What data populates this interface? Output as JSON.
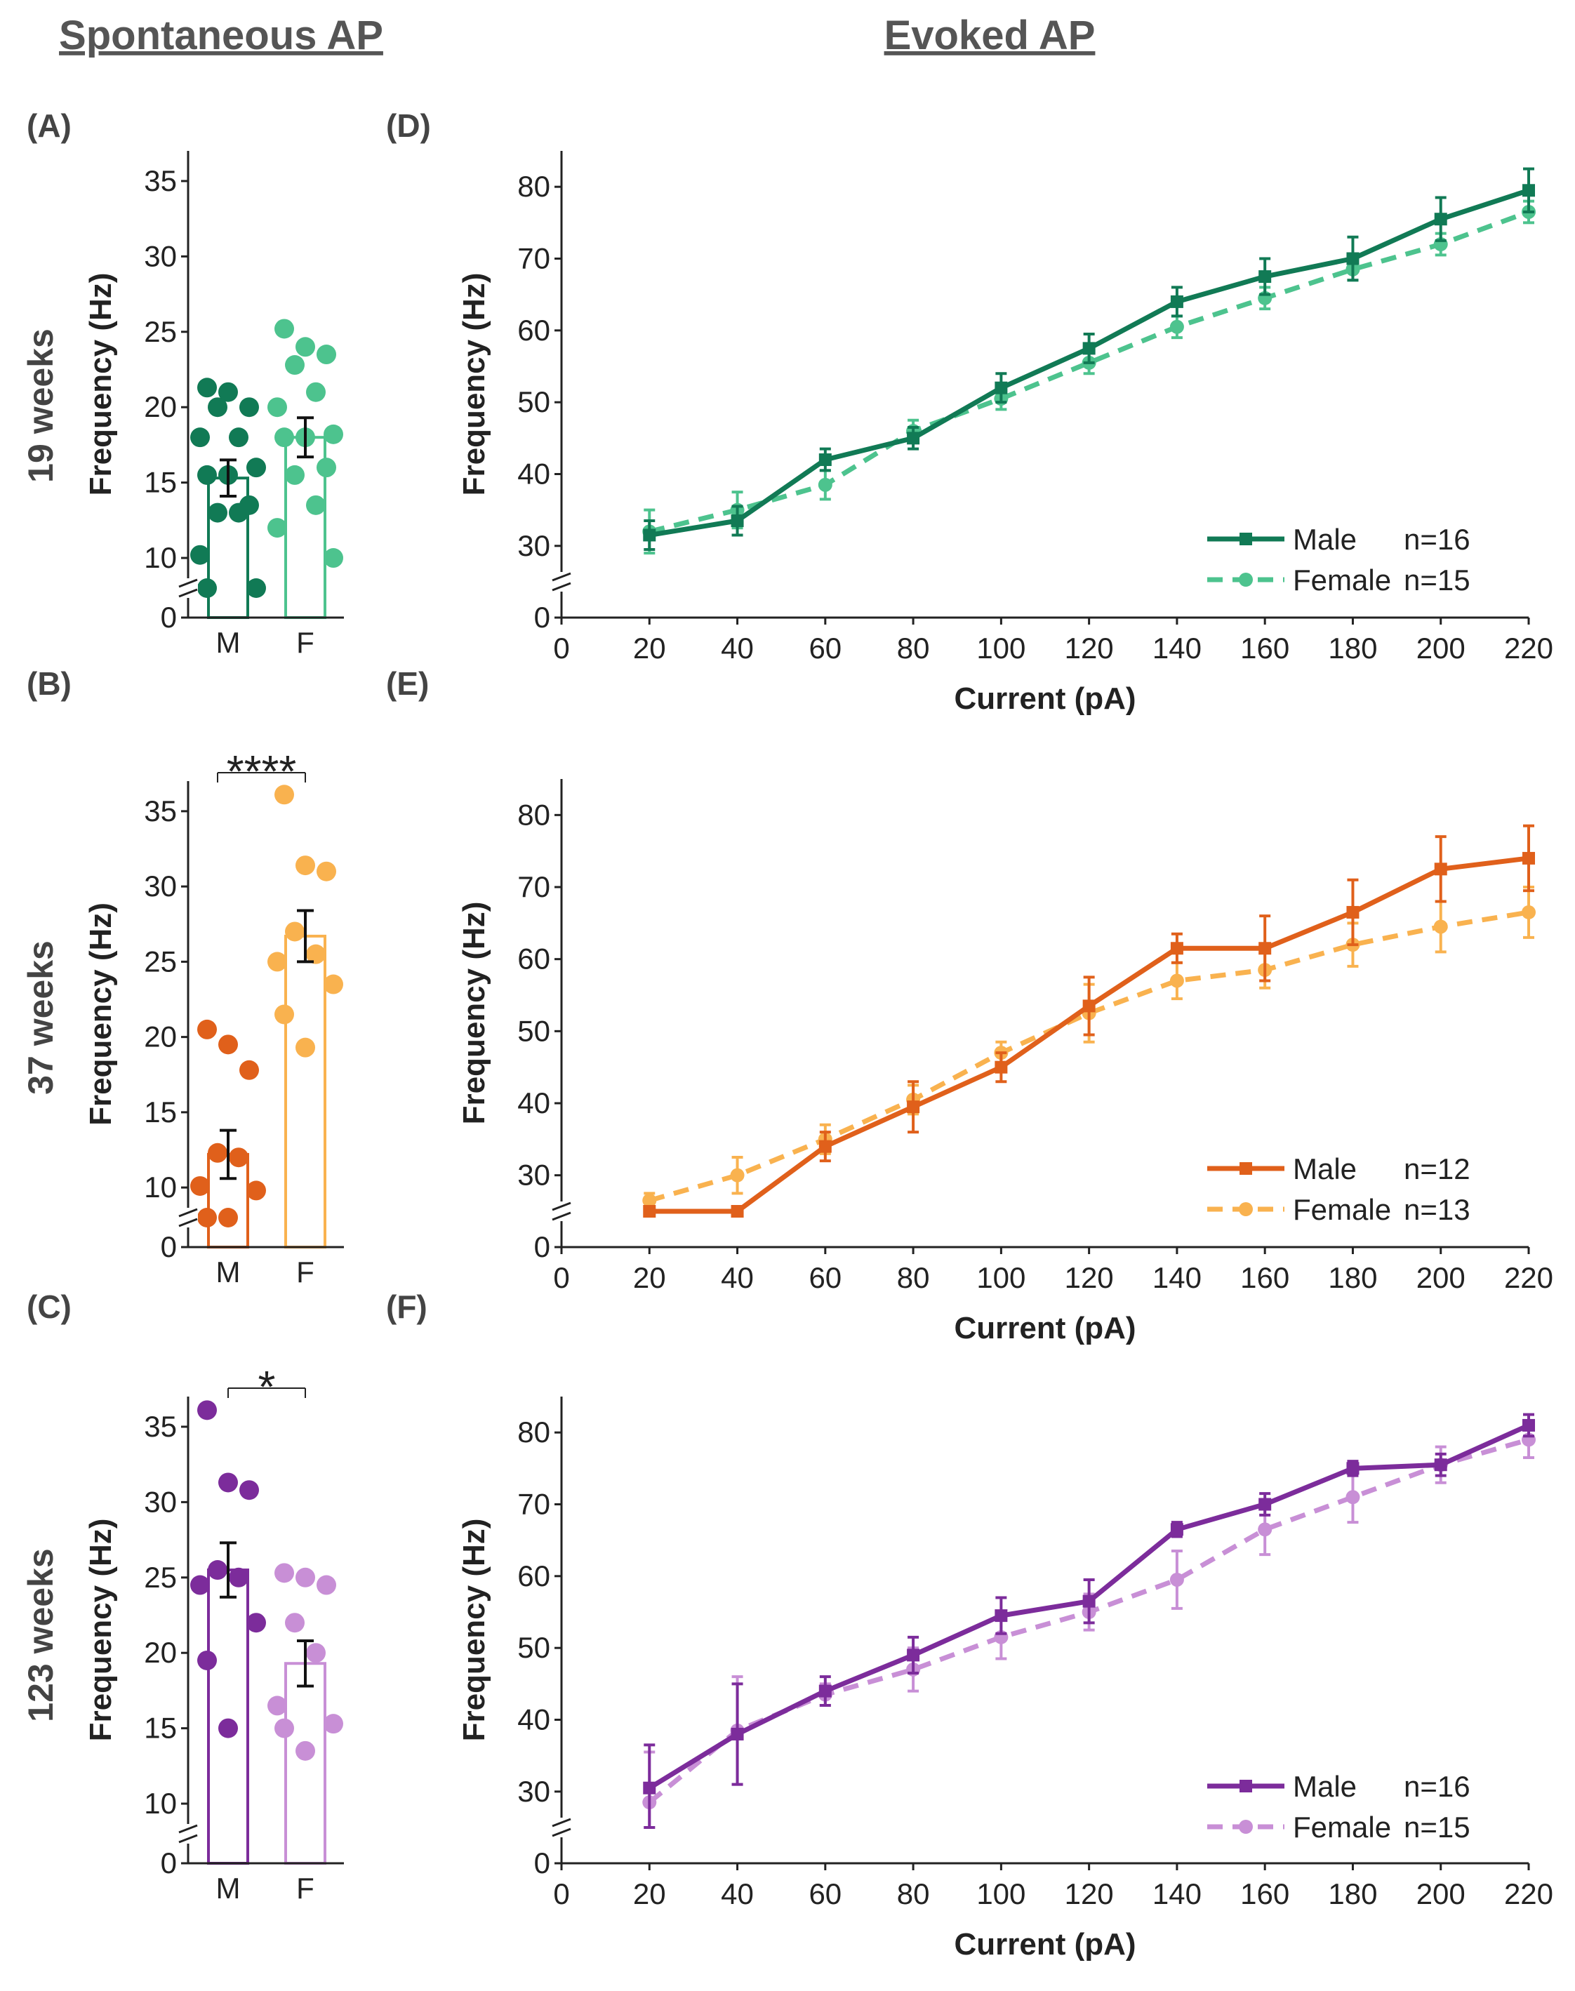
{
  "headers": {
    "left": "Spontaneous AP",
    "right": "Evoked AP"
  },
  "ages": [
    "19 weeks",
    "37 weeks",
    "123 weeks"
  ],
  "colors": {
    "row1": {
      "male": "#117a55",
      "female": "#4dc38e"
    },
    "row2": {
      "male": "#e0601b",
      "female": "#f9b24f"
    },
    "row3": {
      "male": "#7c2c9b",
      "female": "#c88fd6"
    }
  },
  "chart_data": [
    {
      "panel": "(A)",
      "type": "bar",
      "categories": [
        "M",
        "F"
      ],
      "ylabel": "Frequency (Hz)",
      "ylim": [
        0,
        37
      ],
      "yticks": [
        0,
        10,
        15,
        20,
        25,
        30,
        35
      ],
      "y_break": [
        2,
        8
      ],
      "means": [
        15.3,
        18.0
      ],
      "sem": [
        1.2,
        1.3
      ],
      "points": [
        [
          21.3,
          21.0,
          20.0,
          20.0,
          18.0,
          18.0,
          16.0,
          15.5,
          15.5,
          13.5,
          13.0,
          13.0,
          10.2,
          8.0,
          8.0
        ],
        [
          25.2,
          24.0,
          23.5,
          22.8,
          21.0,
          20.0,
          18.2,
          18.0,
          18.0,
          16.0,
          15.5,
          13.5,
          12.0,
          10.0
        ]
      ],
      "significance": null
    },
    {
      "panel": "(B)",
      "type": "bar",
      "categories": [
        "M",
        "F"
      ],
      "ylabel": "Frequency (Hz)",
      "ylim": [
        0,
        37
      ],
      "yticks": [
        0,
        10,
        15,
        20,
        25,
        30,
        35
      ],
      "y_break": [
        2,
        8
      ],
      "means": [
        12.2,
        26.7
      ],
      "sem": [
        1.6,
        1.7
      ],
      "points": [
        [
          20.5,
          19.5,
          17.8,
          12.3,
          12.0,
          10.1,
          9.8,
          7.5,
          7.5
        ],
        [
          36.1,
          31.4,
          31.0,
          27.0,
          25.5,
          25.0,
          23.5,
          21.5,
          19.3
        ]
      ],
      "significance": "****"
    },
    {
      "panel": "(C)",
      "type": "bar",
      "categories": [
        "M",
        "F"
      ],
      "ylabel": "Frequency (Hz)",
      "ylim": [
        0,
        37
      ],
      "yticks": [
        0,
        10,
        15,
        20,
        25,
        30,
        35
      ],
      "y_break": [
        2,
        8
      ],
      "means": [
        25.5,
        19.3
      ],
      "sem": [
        1.8,
        1.5
      ],
      "points": [
        [
          36.1,
          31.3,
          30.8,
          25.5,
          25.0,
          24.5,
          22.0,
          19.5,
          15.0
        ],
        [
          25.3,
          25.0,
          24.5,
          22.0,
          20.0,
          16.5,
          15.3,
          15.0,
          13.5
        ]
      ],
      "significance": "*"
    },
    {
      "panel": "(D)",
      "type": "line",
      "xlabel": "Current (pA)",
      "ylabel": "Frequency (Hz)",
      "x": [
        20,
        40,
        60,
        80,
        100,
        120,
        140,
        160,
        180,
        200,
        220
      ],
      "xlim": [
        0,
        220
      ],
      "ylim": [
        0,
        85
      ],
      "yticks": [
        0,
        30,
        40,
        50,
        60,
        70,
        80
      ],
      "y_break": [
        5,
        25
      ],
      "series": [
        {
          "name": "Male",
          "n_label": "n=16",
          "values": [
            31.5,
            33.5,
            42.0,
            45.0,
            52.0,
            57.5,
            64.0,
            67.5,
            70.0,
            75.5,
            79.5
          ],
          "errors": [
            2.0,
            2.0,
            1.5,
            1.5,
            2.0,
            2.0,
            2.0,
            2.5,
            3.0,
            3.0,
            3.0
          ]
        },
        {
          "name": "Female",
          "n_label": "n=15",
          "values": [
            32.0,
            35.0,
            38.5,
            46.0,
            50.5,
            55.5,
            60.5,
            64.5,
            68.5,
            72.0,
            76.5
          ],
          "errors": [
            3.0,
            2.5,
            2.0,
            1.5,
            1.5,
            1.5,
            1.5,
            1.5,
            1.5,
            1.5,
            1.5
          ]
        }
      ]
    },
    {
      "panel": "(E)",
      "type": "line",
      "xlabel": "Current (pA)",
      "ylabel": "Frequency (Hz)",
      "x": [
        20,
        40,
        60,
        80,
        100,
        120,
        140,
        160,
        180,
        200,
        220
      ],
      "xlim": [
        0,
        220
      ],
      "ylim": [
        0,
        85
      ],
      "yticks": [
        0,
        30,
        40,
        50,
        60,
        70,
        80
      ],
      "y_break": [
        5,
        25
      ],
      "series": [
        {
          "name": "Male",
          "n_label": "n=12",
          "values": [
            17.0,
            19.0,
            34.0,
            39.5,
            45.0,
            53.5,
            61.5,
            61.5,
            66.5,
            72.5,
            74.0
          ],
          "errors": [
            1.0,
            5.0,
            2.0,
            3.5,
            2.0,
            4.0,
            2.0,
            4.5,
            4.5,
            4.5,
            4.5
          ]
        },
        {
          "name": "Female",
          "n_label": "n=13",
          "values": [
            26.5,
            30.0,
            35.0,
            40.5,
            47.0,
            52.5,
            57.0,
            58.5,
            62.0,
            64.5,
            66.5
          ],
          "errors": [
            1.0,
            2.5,
            2.0,
            2.0,
            1.5,
            4.0,
            2.5,
            2.5,
            3.0,
            3.5,
            3.5
          ]
        }
      ]
    },
    {
      "panel": "(F)",
      "type": "line",
      "xlabel": "Current (pA)",
      "ylabel": "Frequency (Hz)",
      "x": [
        20,
        40,
        60,
        80,
        100,
        120,
        140,
        160,
        180,
        200,
        220
      ],
      "xlim": [
        0,
        220
      ],
      "ylim": [
        0,
        85
      ],
      "yticks": [
        0,
        30,
        40,
        50,
        60,
        70,
        80
      ],
      "y_break": [
        5,
        25
      ],
      "series": [
        {
          "name": "Male",
          "n_label": "n=16",
          "values": [
            30.5,
            38.0,
            44.0,
            49.0,
            54.5,
            56.5,
            66.5,
            70.0,
            75.0,
            75.5,
            81.0
          ],
          "errors": [
            6.0,
            7.0,
            2.0,
            2.5,
            2.5,
            3.0,
            1.0,
            1.5,
            1.0,
            1.5,
            1.5
          ]
        },
        {
          "name": "Female",
          "n_label": "n=15",
          "values": [
            28.5,
            38.5,
            43.5,
            47.0,
            51.5,
            55.0,
            59.5,
            66.5,
            71.0,
            75.5,
            79.0
          ],
          "errors": [
            7.0,
            7.5,
            1.5,
            3.0,
            3.0,
            2.5,
            4.0,
            3.5,
            3.5,
            2.5,
            2.5
          ]
        }
      ]
    }
  ]
}
